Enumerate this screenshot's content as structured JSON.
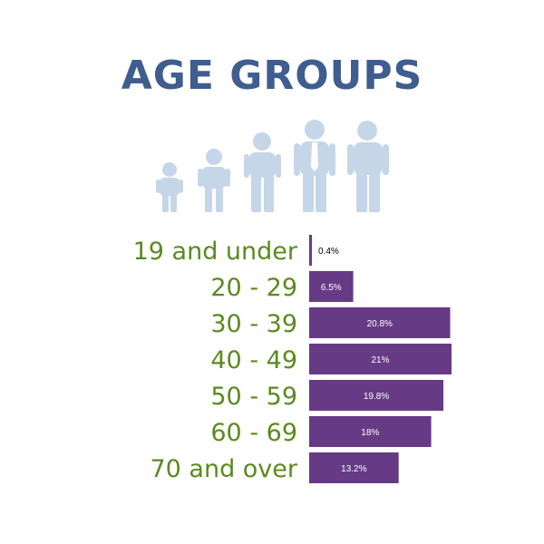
{
  "title": "AGE GROUPS",
  "colors": {
    "title": "#3f5d8f",
    "figure": "#c5d6e8",
    "label": "#5b8a1f",
    "bar": "#673a86",
    "bar_text": "#ffffff",
    "outside_text": "#000000"
  },
  "icons": [
    "child-figure-icon",
    "boy-figure-icon",
    "teen-figure-icon",
    "man-tie-figure-icon",
    "adult-figure-icon"
  ],
  "chart_data": {
    "type": "bar",
    "orientation": "horizontal",
    "title": "AGE GROUPS",
    "categories": [
      "19 and under",
      "20 - 29",
      "30 - 39",
      "40 - 49",
      "50 - 59",
      "60 - 69",
      "70 and over"
    ],
    "values": [
      0.4,
      6.5,
      20.8,
      21,
      19.8,
      18,
      13.2
    ],
    "value_labels": [
      "0.4%",
      "6.5%",
      "20.8%",
      "21%",
      "19.8%",
      "18%",
      "13.2%"
    ],
    "xlim": [
      0,
      21
    ],
    "unit": "%",
    "grid": false,
    "legend": "none"
  }
}
